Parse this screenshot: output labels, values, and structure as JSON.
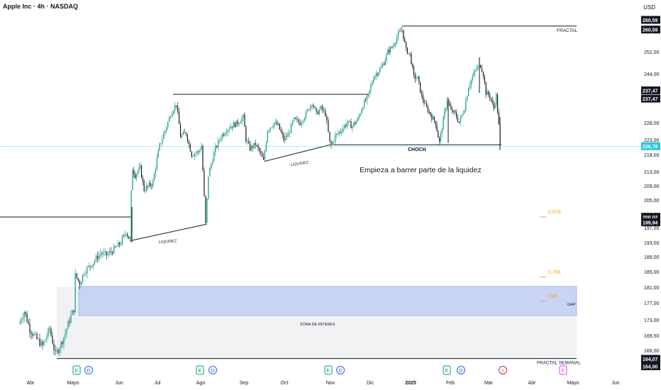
{
  "header": {
    "symbol_title": "Apple Inc · 4h · NASDAQ",
    "currency": "USD"
  },
  "chart_data": {
    "type": "candlestick",
    "title": "Apple Inc · 4h · NASDAQ",
    "y_axis": {
      "side": "right",
      "unit": "USD",
      "ticks": [
        252.0,
        244.0,
        236.0,
        228.0,
        223.0,
        218.0,
        213.0,
        209.0,
        205.0,
        201.0,
        197.0,
        193.0,
        189.0,
        185.0,
        181.0,
        177.0,
        173.0,
        169.5,
        166.0
      ],
      "ylim": [
        161.5,
        262.0
      ],
      "price_tags": [
        {
          "text": "260,59",
          "price": 262.2,
          "style": "dark"
        },
        {
          "text": "260,59",
          "price": 259.6,
          "style": "dark"
        },
        {
          "text": "237,47",
          "price": 238.8,
          "style": "dark"
        },
        {
          "text": "237,47",
          "price": 236.2,
          "style": "dark"
        },
        {
          "text": "220,78",
          "price": 220.8,
          "style": "accent"
        },
        {
          "text": "200,02",
          "price": 200.2,
          "style": "dark"
        },
        {
          "text": "199,94",
          "price": 198.6,
          "style": "dark"
        },
        {
          "text": "164,07",
          "price": 164.0,
          "style": "dark"
        },
        {
          "text": "164,00",
          "price": 161.8,
          "style": "dark"
        }
      ]
    },
    "x_axis": {
      "ticks": [
        "Abr",
        "Mayo",
        "Jun",
        "Jul",
        "Ago",
        "Sep",
        "Oct",
        "Nov",
        "Dic",
        "2025",
        "Feb",
        "Mar",
        "Abr",
        "Mayo",
        "Jun"
      ],
      "bold_ticks": [
        "2025"
      ]
    },
    "last_price": 220.78,
    "series": [
      {
        "date": "Mar 22",
        "price": 172.0
      },
      {
        "date": "Mar 27",
        "price": 175.0
      },
      {
        "date": "Apr 01",
        "price": 171.0
      },
      {
        "date": "Apr 05",
        "price": 169.0
      },
      {
        "date": "Apr 10",
        "price": 167.0
      },
      {
        "date": "Apr 15",
        "price": 171.0
      },
      {
        "date": "Apr 19",
        "price": 165.0
      },
      {
        "date": "Apr 23",
        "price": 167.5
      },
      {
        "date": "Apr 26",
        "price": 170.0
      },
      {
        "date": "Apr 29",
        "price": 173.0
      },
      {
        "date": "May 02",
        "price": 175.5
      },
      {
        "date": "May 03",
        "price": 184.0
      },
      {
        "date": "May 06",
        "price": 182.0
      },
      {
        "date": "May 09",
        "price": 185.0
      },
      {
        "date": "May 14",
        "price": 187.0
      },
      {
        "date": "May 20",
        "price": 190.0
      },
      {
        "date": "May 24",
        "price": 189.5
      },
      {
        "date": "May 29",
        "price": 191.0
      },
      {
        "date": "Jun 03",
        "price": 193.0
      },
      {
        "date": "Jun 07",
        "price": 196.0
      },
      {
        "date": "Jun 10",
        "price": 193.5
      },
      {
        "date": "Jun 11",
        "price": 207.0
      },
      {
        "date": "Jun 12",
        "price": 214.0
      },
      {
        "date": "Jun 14",
        "price": 212.0
      },
      {
        "date": "Jun 18",
        "price": 214.0
      },
      {
        "date": "Jun 21",
        "price": 208.0
      },
      {
        "date": "Jun 25",
        "price": 209.0
      },
      {
        "date": "Jun 28",
        "price": 210.0
      },
      {
        "date": "Jul 03",
        "price": 221.0
      },
      {
        "date": "Jul 08",
        "price": 227.0
      },
      {
        "date": "Jul 12",
        "price": 232.0
      },
      {
        "date": "Jul 15",
        "price": 234.5
      },
      {
        "date": "Jul 18",
        "price": 224.0
      },
      {
        "date": "Jul 22",
        "price": 225.0
      },
      {
        "date": "Jul 26",
        "price": 218.0
      },
      {
        "date": "Jul 31",
        "price": 219.0
      },
      {
        "date": "Aug 02",
        "price": 221.0
      },
      {
        "date": "Aug 05",
        "price": 198.0
      },
      {
        "date": "Aug 07",
        "price": 212.0
      },
      {
        "date": "Aug 12",
        "price": 220.0
      },
      {
        "date": "Aug 16",
        "price": 224.0
      },
      {
        "date": "Aug 20",
        "price": 226.0
      },
      {
        "date": "Aug 23",
        "price": 227.0
      },
      {
        "date": "Aug 28",
        "price": 228.0
      },
      {
        "date": "Sep 01",
        "price": 230.0
      },
      {
        "date": "Sep 03",
        "price": 223.0
      },
      {
        "date": "Sep 06",
        "price": 220.0
      },
      {
        "date": "Sep 10",
        "price": 221.5
      },
      {
        "date": "Sep 13",
        "price": 219.0
      },
      {
        "date": "Sep 16",
        "price": 216.0
      },
      {
        "date": "Sep 19",
        "price": 226.0
      },
      {
        "date": "Sep 24",
        "price": 228.0
      },
      {
        "date": "Sep 27",
        "price": 227.0
      },
      {
        "date": "Oct 01",
        "price": 223.0
      },
      {
        "date": "Oct 04",
        "price": 224.5
      },
      {
        "date": "Oct 08",
        "price": 229.0
      },
      {
        "date": "Oct 12",
        "price": 228.0
      },
      {
        "date": "Oct 16",
        "price": 231.0
      },
      {
        "date": "Oct 20",
        "price": 235.0
      },
      {
        "date": "Oct 23",
        "price": 231.0
      },
      {
        "date": "Oct 26",
        "price": 233.0
      },
      {
        "date": "Oct 29",
        "price": 231.0
      },
      {
        "date": "Nov 01",
        "price": 222.0
      },
      {
        "date": "Nov 02",
        "price": 221.0
      },
      {
        "date": "Nov 05",
        "price": 224.0
      },
      {
        "date": "Nov 10",
        "price": 226.0
      },
      {
        "date": "Nov 14",
        "price": 228.0
      },
      {
        "date": "Nov 18",
        "price": 227.0
      },
      {
        "date": "Nov 22",
        "price": 229.0
      },
      {
        "date": "Nov 26",
        "price": 234.0
      },
      {
        "date": "Nov 30",
        "price": 237.0
      },
      {
        "date": "Dec 04",
        "price": 243.0
      },
      {
        "date": "Dec 08",
        "price": 245.0
      },
      {
        "date": "Dec 12",
        "price": 248.0
      },
      {
        "date": "Dec 15",
        "price": 252.0
      },
      {
        "date": "Dec 19",
        "price": 254.0
      },
      {
        "date": "Dec 23",
        "price": 258.0
      },
      {
        "date": "Dec 26",
        "price": 259.5
      },
      {
        "date": "Dec 29",
        "price": 252.5
      },
      {
        "date": "Jan 01",
        "price": 251.0
      },
      {
        "date": "Jan 04",
        "price": 243.0
      },
      {
        "date": "Jan 07",
        "price": 242.5
      },
      {
        "date": "Jan 10",
        "price": 237.0
      },
      {
        "date": "Jan 14",
        "price": 233.0
      },
      {
        "date": "Jan 18",
        "price": 230.0
      },
      {
        "date": "Jan 21",
        "price": 228.0
      },
      {
        "date": "Jan 24",
        "price": 222.0
      },
      {
        "date": "Jan 27",
        "price": 229.0
      },
      {
        "date": "Jan 30",
        "price": 236.0
      },
      {
        "date": "Feb 02",
        "price": 232.0
      },
      {
        "date": "Feb 05",
        "price": 231.0
      },
      {
        "date": "Feb 08",
        "price": 228.0
      },
      {
        "date": "Feb 12",
        "price": 233.0
      },
      {
        "date": "Feb 15",
        "price": 240.0
      },
      {
        "date": "Feb 18",
        "price": 243.0
      },
      {
        "date": "Feb 21",
        "price": 246.0
      },
      {
        "date": "Feb 24",
        "price": 247.0
      },
      {
        "date": "Feb 26",
        "price": 244.0
      },
      {
        "date": "Feb 28",
        "price": 238.0
      },
      {
        "date": "Mar 03",
        "price": 237.0
      },
      {
        "date": "Mar 06",
        "price": 233.0
      },
      {
        "date": "Mar 08",
        "price": 237.0
      },
      {
        "date": "Mar 10",
        "price": 227.0
      },
      {
        "date": "Mar 11",
        "price": 220.78
      }
    ],
    "annotations": [
      {
        "text": "FRACTAL",
        "type": "hline",
        "price": 260.59
      },
      {
        "text": "FRACTAL SEMANAL",
        "type": "hline",
        "price": 164.07
      },
      {
        "text": "CHOCH",
        "type": "hline",
        "price": 221.3
      },
      {
        "text": "Empieza a barrer parte de la liquidez",
        "type": "note"
      },
      {
        "text": "LIQUIDEZ",
        "type": "trendline",
        "from": [
          "Jun 10",
          193.5
        ],
        "to": [
          "Aug 05",
          198.0
        ]
      },
      {
        "text": "LIQUIDEZ",
        "type": "trendline",
        "from": [
          "Sep 16",
          216.0
        ],
        "to": [
          "Nov 01",
          221.3
        ]
      },
      {
        "text": "ZONA DE INTERES",
        "type": "zone",
        "top": 174.0,
        "bottom": 164.07
      },
      {
        "text": "GAP",
        "type": "zone",
        "top": 181.2,
        "bottom": 174.0
      },
      {
        "text": "0,618",
        "type": "fib",
        "price": 201.2
      },
      {
        "text": "0,786",
        "type": "fib",
        "price": 184.5
      },
      {
        "text": "0,85",
        "type": "fib",
        "price": 178.3
      }
    ],
    "event_markers": [
      {
        "text": "E",
        "kind": "earnings",
        "color": "#089981"
      },
      {
        "text": "D",
        "kind": "dividend",
        "color": "#2962ff"
      },
      {
        "text": "E",
        "kind": "earnings",
        "color": "#089981"
      },
      {
        "text": "D",
        "kind": "dividend",
        "color": "#2962ff"
      },
      {
        "text": "E",
        "kind": "earnings",
        "color": "#089981"
      },
      {
        "text": "D",
        "kind": "dividend",
        "color": "#2962ff"
      },
      {
        "text": "E",
        "kind": "earnings",
        "color": "#089981"
      },
      {
        "text": "D",
        "kind": "dividend",
        "color": "#2962ff"
      },
      {
        "text": "⚡",
        "kind": "split",
        "color": "#9c27b0"
      },
      {
        "text": "E",
        "kind": "earnings-upcoming",
        "color": "#e040fb"
      }
    ],
    "colors": {
      "up": "#089981",
      "down": "#131722",
      "accent": "#26c6da",
      "fib": "#f7a325",
      "gap_fill": "#c9d4f5",
      "zone_fill": "#f0f2f4"
    },
    "grid": false,
    "legend": "none"
  }
}
